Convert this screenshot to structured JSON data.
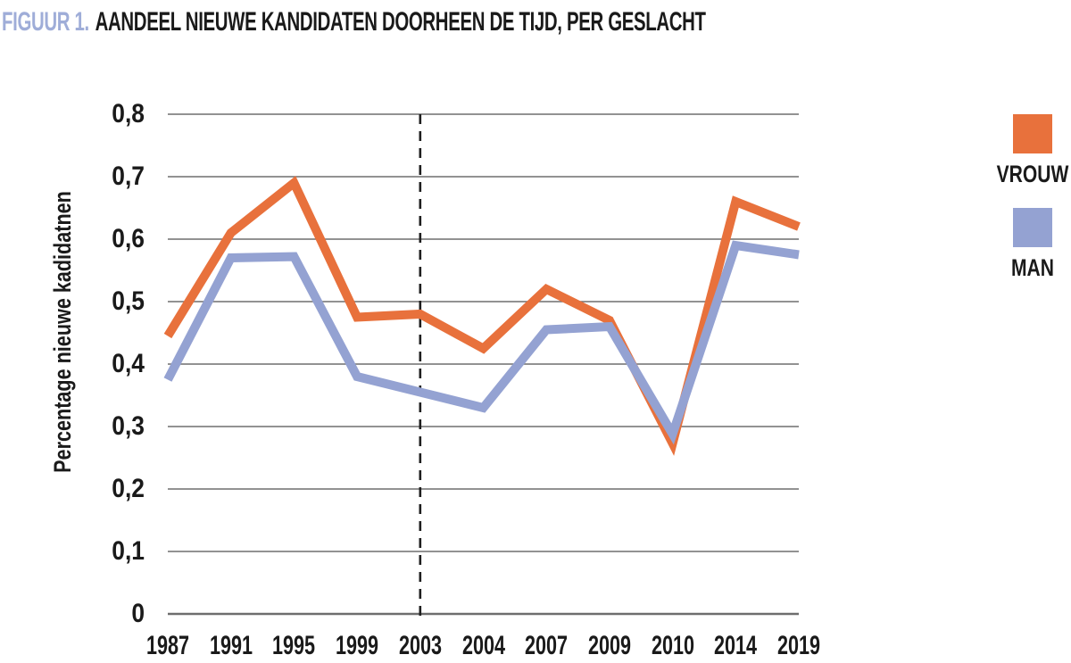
{
  "title": {
    "figure_label": "FIGUUR 1.",
    "text": "AANDEEL NIEUWE KANDIDATEN DOORHEEN DE TIJD, PER GESLACHT"
  },
  "colors": {
    "figure_label": "#9fadd8",
    "title_text": "#1a1a1a",
    "vrouw": "#e8713c",
    "man": "#94a2d2",
    "gridline": "#6e6e6e",
    "axis_line": "#6e6e6e",
    "dashed_line": "#1f1f1f",
    "background": "#ffffff"
  },
  "chart_data": {
    "type": "line",
    "title": "AANDEEL NIEUWE KANDIDATEN DOORHEEN DE TIJD, PER GESLACHT",
    "xlabel": "",
    "ylabel": "Percentage nieuwe kadidatnen",
    "categories": [
      "1987",
      "1991",
      "1995",
      "1999",
      "2003",
      "2004",
      "2007",
      "2009",
      "2010",
      "2014",
      "2019"
    ],
    "series": [
      {
        "name": "VROUW",
        "color": "#e8713c",
        "values": [
          0.445,
          0.61,
          0.69,
          0.475,
          0.48,
          0.425,
          0.52,
          0.47,
          0.273,
          0.66,
          0.62
        ]
      },
      {
        "name": "MAN",
        "color": "#94a2d2",
        "values": [
          0.375,
          0.57,
          0.572,
          0.38,
          0.355,
          0.33,
          0.455,
          0.46,
          0.288,
          0.59,
          0.575
        ]
      }
    ],
    "ylim": [
      0,
      0.8
    ],
    "ytick_values": [
      0,
      0.1,
      0.2,
      0.3,
      0.4,
      0.5,
      0.6,
      0.7,
      0.8
    ],
    "ytick_labels": [
      "0",
      "0,1",
      "0,2",
      "0,3",
      "0,4",
      "0,5",
      "0,6",
      "0,7",
      "0,8"
    ],
    "grid": "horizontal",
    "legend_position": "right",
    "line_width": 10,
    "annotations": [
      {
        "type": "vline",
        "category": "2003",
        "style": "dashed"
      }
    ]
  }
}
